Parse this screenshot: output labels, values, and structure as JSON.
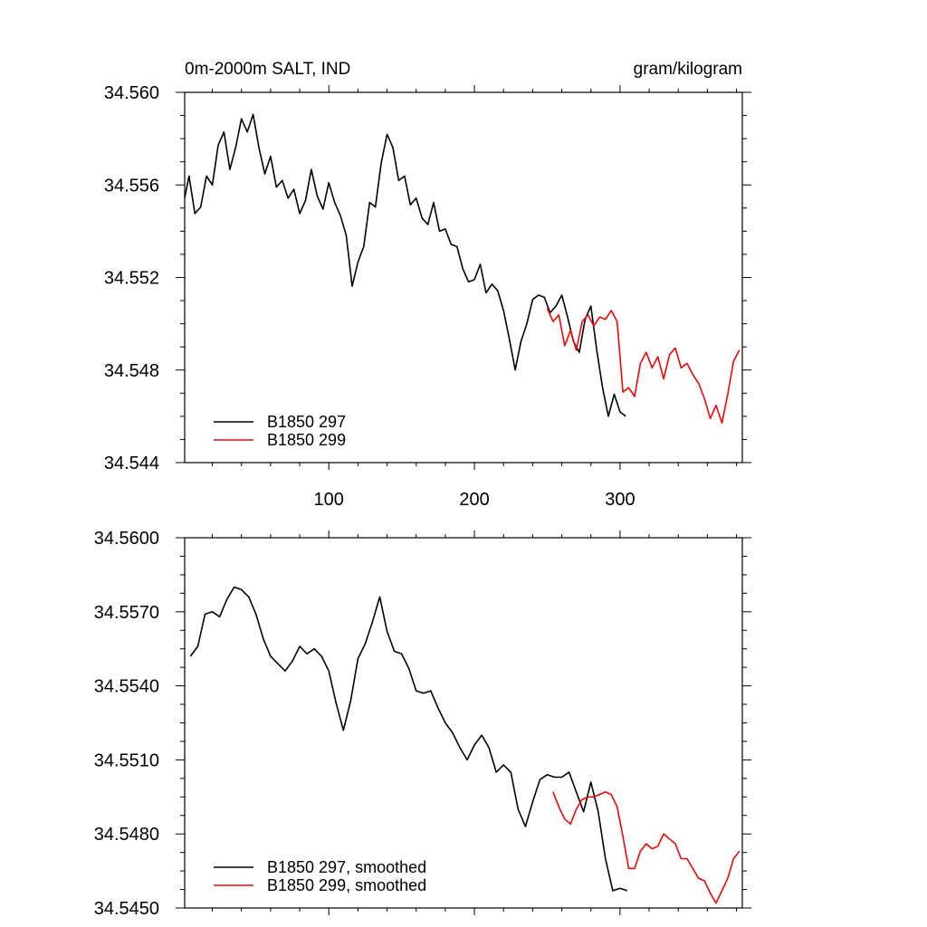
{
  "chart_data": [
    {
      "type": "line",
      "title": "0m-2000m SALT, IND",
      "units": "gram/kilogram",
      "xlim": [
        1,
        384
      ],
      "ylim": [
        34.5432,
        34.56
      ],
      "x_ticks": [
        100,
        200,
        300
      ],
      "y_ticks": [
        "34.560",
        "34.556",
        "34.552",
        "34.548",
        "34.544"
      ],
      "legend_position": "bottom-left",
      "series": [
        {
          "name": "B1850 297",
          "color": "#000000",
          "x": [
            1,
            4,
            8,
            12,
            16,
            20,
            24,
            28,
            32,
            36,
            40,
            44,
            48,
            52,
            56,
            60,
            64,
            68,
            72,
            76,
            80,
            84,
            88,
            92,
            96,
            100,
            104,
            108,
            112,
            116,
            120,
            124,
            128,
            132,
            136,
            140,
            144,
            148,
            152,
            156,
            160,
            164,
            168,
            172,
            176,
            180,
            184,
            188,
            192,
            196,
            200,
            204,
            208,
            212,
            216,
            220,
            224,
            228,
            232,
            236,
            240,
            244,
            248,
            252,
            256,
            260,
            264,
            268,
            272,
            276,
            280,
            284,
            288,
            292,
            296,
            300,
            304
          ],
          "y": [
            34.5552,
            34.5562,
            34.5545,
            34.5548,
            34.5562,
            34.5558,
            34.5576,
            34.5582,
            34.5565,
            34.5575,
            34.5588,
            34.5582,
            34.559,
            34.5575,
            34.5563,
            34.5571,
            34.5557,
            34.556,
            34.5552,
            34.5556,
            34.5545,
            34.5551,
            34.5565,
            34.5553,
            34.5547,
            34.5559,
            34.555,
            34.5544,
            34.5535,
            34.5512,
            34.5523,
            34.553,
            34.555,
            34.5548,
            34.5568,
            34.5581,
            34.5575,
            34.556,
            34.5562,
            34.5549,
            34.5552,
            34.5543,
            34.554,
            34.555,
            34.5537,
            34.5538,
            34.5531,
            34.553,
            34.552,
            34.5514,
            34.5515,
            34.5522,
            34.5509,
            34.5513,
            34.551,
            34.5501,
            34.5488,
            34.5474,
            34.5487,
            34.5495,
            34.5506,
            34.5508,
            34.5507,
            34.55,
            34.5503,
            34.5508,
            34.5498,
            34.5487,
            34.5482,
            34.5497,
            34.5503,
            34.5483,
            34.5466,
            34.5453,
            34.5463,
            34.5455,
            34.5453
          ]
        },
        {
          "name": "B1850 299",
          "color": "#ff0000",
          "x": [
            250,
            254,
            258,
            262,
            266,
            270,
            274,
            278,
            282,
            286,
            290,
            294,
            298,
            302,
            306,
            310,
            314,
            318,
            322,
            326,
            330,
            334,
            338,
            342,
            346,
            350,
            354,
            358,
            362,
            366,
            370,
            374,
            378,
            382
          ],
          "y": [
            34.5502,
            34.5496,
            34.5499,
            34.5485,
            34.5492,
            34.5483,
            34.5496,
            34.5499,
            34.5494,
            34.5498,
            34.5497,
            34.5501,
            34.5496,
            34.5464,
            34.5466,
            34.5462,
            34.5477,
            34.5482,
            34.5475,
            34.548,
            34.547,
            34.5481,
            34.5484,
            34.5475,
            34.5477,
            34.5472,
            34.5468,
            34.5461,
            34.5452,
            34.5458,
            34.545,
            34.5463,
            34.5478,
            34.5483
          ]
        }
      ]
    },
    {
      "type": "line",
      "xlim": [
        1,
        384
      ],
      "ylim": [
        34.545,
        34.56
      ],
      "y_ticks": [
        "34.5600",
        "34.5570",
        "34.5540",
        "34.5510",
        "34.5480",
        "34.5450"
      ],
      "legend_position": "bottom-left",
      "series": [
        {
          "name": "B1850 297, smoothed",
          "color": "#000000",
          "x": [
            5,
            10,
            15,
            20,
            25,
            30,
            35,
            40,
            45,
            50,
            55,
            60,
            65,
            70,
            75,
            80,
            85,
            90,
            95,
            100,
            105,
            110,
            115,
            120,
            125,
            130,
            135,
            140,
            145,
            150,
            155,
            160,
            165,
            170,
            175,
            180,
            185,
            190,
            195,
            200,
            205,
            210,
            215,
            220,
            225,
            230,
            235,
            240,
            245,
            250,
            255,
            260,
            265,
            270,
            275,
            280,
            285,
            290,
            295,
            300,
            305
          ],
          "y": [
            34.5552,
            34.5556,
            34.5569,
            34.557,
            34.5568,
            34.5575,
            34.558,
            34.5579,
            34.5576,
            34.5569,
            34.5559,
            34.5552,
            34.5549,
            34.5546,
            34.555,
            34.5556,
            34.5553,
            34.5555,
            34.5552,
            34.5546,
            34.5533,
            34.5522,
            34.5534,
            34.5551,
            34.5557,
            34.5566,
            34.5576,
            34.5562,
            34.5554,
            34.5553,
            34.5547,
            34.5538,
            34.5537,
            34.5538,
            34.5531,
            34.5525,
            34.5521,
            34.5515,
            34.551,
            34.5516,
            34.552,
            34.5515,
            34.5505,
            34.5508,
            34.5505,
            34.549,
            34.5483,
            34.5493,
            34.5502,
            34.5504,
            34.5503,
            34.5503,
            34.5505,
            34.5497,
            34.5489,
            34.5501,
            34.5489,
            34.547,
            34.5457,
            34.5458,
            34.5457
          ]
        },
        {
          "name": "B1850 299, smoothed",
          "color": "#ff0000",
          "x": [
            254,
            258,
            262,
            266,
            270,
            274,
            278,
            282,
            286,
            290,
            294,
            298,
            302,
            306,
            310,
            314,
            318,
            322,
            326,
            330,
            334,
            338,
            342,
            346,
            350,
            354,
            358,
            362,
            366,
            370,
            374,
            378,
            382
          ],
          "y": [
            34.5497,
            34.5491,
            34.5486,
            34.5484,
            34.549,
            34.5494,
            34.5495,
            34.5495,
            34.5496,
            34.5497,
            34.5496,
            34.5491,
            34.5479,
            34.5466,
            34.5466,
            34.5473,
            34.5476,
            34.5474,
            34.5475,
            34.548,
            34.5478,
            34.5476,
            34.547,
            34.547,
            34.5466,
            34.5462,
            34.5461,
            34.5456,
            34.5452,
            34.5457,
            34.5462,
            34.547,
            34.5473
          ]
        }
      ]
    }
  ]
}
